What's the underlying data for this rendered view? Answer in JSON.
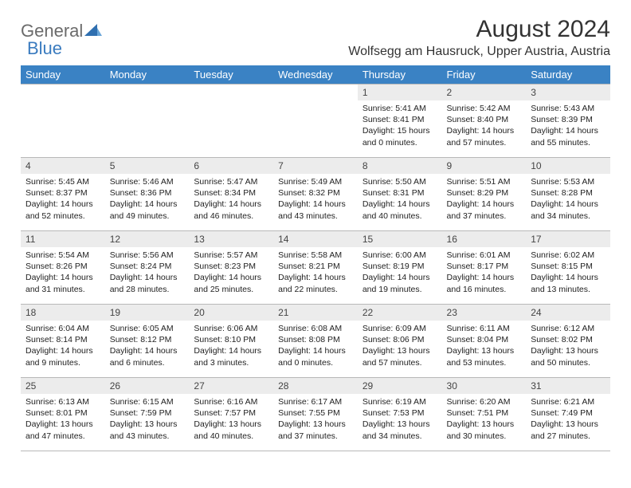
{
  "brand": {
    "part1": "General",
    "part2": "Blue"
  },
  "title": "August 2024",
  "location": "Wolfsegg am Hausruck, Upper Austria, Austria",
  "colors": {
    "header_bg": "#3a82c4",
    "header_fg": "#ffffff",
    "daynum_bg": "#ececec",
    "border": "#b8b8b8",
    "text": "#222222",
    "brand_gray": "#6b6b6b",
    "brand_blue": "#3a7bbf"
  },
  "day_names": [
    "Sunday",
    "Monday",
    "Tuesday",
    "Wednesday",
    "Thursday",
    "Friday",
    "Saturday"
  ],
  "weeks": [
    [
      {
        "n": "",
        "sr": "",
        "ss": "",
        "dl": ""
      },
      {
        "n": "",
        "sr": "",
        "ss": "",
        "dl": ""
      },
      {
        "n": "",
        "sr": "",
        "ss": "",
        "dl": ""
      },
      {
        "n": "",
        "sr": "",
        "ss": "",
        "dl": ""
      },
      {
        "n": "1",
        "sr": "Sunrise: 5:41 AM",
        "ss": "Sunset: 8:41 PM",
        "dl": "Daylight: 15 hours and 0 minutes."
      },
      {
        "n": "2",
        "sr": "Sunrise: 5:42 AM",
        "ss": "Sunset: 8:40 PM",
        "dl": "Daylight: 14 hours and 57 minutes."
      },
      {
        "n": "3",
        "sr": "Sunrise: 5:43 AM",
        "ss": "Sunset: 8:39 PM",
        "dl": "Daylight: 14 hours and 55 minutes."
      }
    ],
    [
      {
        "n": "4",
        "sr": "Sunrise: 5:45 AM",
        "ss": "Sunset: 8:37 PM",
        "dl": "Daylight: 14 hours and 52 minutes."
      },
      {
        "n": "5",
        "sr": "Sunrise: 5:46 AM",
        "ss": "Sunset: 8:36 PM",
        "dl": "Daylight: 14 hours and 49 minutes."
      },
      {
        "n": "6",
        "sr": "Sunrise: 5:47 AM",
        "ss": "Sunset: 8:34 PM",
        "dl": "Daylight: 14 hours and 46 minutes."
      },
      {
        "n": "7",
        "sr": "Sunrise: 5:49 AM",
        "ss": "Sunset: 8:32 PM",
        "dl": "Daylight: 14 hours and 43 minutes."
      },
      {
        "n": "8",
        "sr": "Sunrise: 5:50 AM",
        "ss": "Sunset: 8:31 PM",
        "dl": "Daylight: 14 hours and 40 minutes."
      },
      {
        "n": "9",
        "sr": "Sunrise: 5:51 AM",
        "ss": "Sunset: 8:29 PM",
        "dl": "Daylight: 14 hours and 37 minutes."
      },
      {
        "n": "10",
        "sr": "Sunrise: 5:53 AM",
        "ss": "Sunset: 8:28 PM",
        "dl": "Daylight: 14 hours and 34 minutes."
      }
    ],
    [
      {
        "n": "11",
        "sr": "Sunrise: 5:54 AM",
        "ss": "Sunset: 8:26 PM",
        "dl": "Daylight: 14 hours and 31 minutes."
      },
      {
        "n": "12",
        "sr": "Sunrise: 5:56 AM",
        "ss": "Sunset: 8:24 PM",
        "dl": "Daylight: 14 hours and 28 minutes."
      },
      {
        "n": "13",
        "sr": "Sunrise: 5:57 AM",
        "ss": "Sunset: 8:23 PM",
        "dl": "Daylight: 14 hours and 25 minutes."
      },
      {
        "n": "14",
        "sr": "Sunrise: 5:58 AM",
        "ss": "Sunset: 8:21 PM",
        "dl": "Daylight: 14 hours and 22 minutes."
      },
      {
        "n": "15",
        "sr": "Sunrise: 6:00 AM",
        "ss": "Sunset: 8:19 PM",
        "dl": "Daylight: 14 hours and 19 minutes."
      },
      {
        "n": "16",
        "sr": "Sunrise: 6:01 AM",
        "ss": "Sunset: 8:17 PM",
        "dl": "Daylight: 14 hours and 16 minutes."
      },
      {
        "n": "17",
        "sr": "Sunrise: 6:02 AM",
        "ss": "Sunset: 8:15 PM",
        "dl": "Daylight: 14 hours and 13 minutes."
      }
    ],
    [
      {
        "n": "18",
        "sr": "Sunrise: 6:04 AM",
        "ss": "Sunset: 8:14 PM",
        "dl": "Daylight: 14 hours and 9 minutes."
      },
      {
        "n": "19",
        "sr": "Sunrise: 6:05 AM",
        "ss": "Sunset: 8:12 PM",
        "dl": "Daylight: 14 hours and 6 minutes."
      },
      {
        "n": "20",
        "sr": "Sunrise: 6:06 AM",
        "ss": "Sunset: 8:10 PM",
        "dl": "Daylight: 14 hours and 3 minutes."
      },
      {
        "n": "21",
        "sr": "Sunrise: 6:08 AM",
        "ss": "Sunset: 8:08 PM",
        "dl": "Daylight: 14 hours and 0 minutes."
      },
      {
        "n": "22",
        "sr": "Sunrise: 6:09 AM",
        "ss": "Sunset: 8:06 PM",
        "dl": "Daylight: 13 hours and 57 minutes."
      },
      {
        "n": "23",
        "sr": "Sunrise: 6:11 AM",
        "ss": "Sunset: 8:04 PM",
        "dl": "Daylight: 13 hours and 53 minutes."
      },
      {
        "n": "24",
        "sr": "Sunrise: 6:12 AM",
        "ss": "Sunset: 8:02 PM",
        "dl": "Daylight: 13 hours and 50 minutes."
      }
    ],
    [
      {
        "n": "25",
        "sr": "Sunrise: 6:13 AM",
        "ss": "Sunset: 8:01 PM",
        "dl": "Daylight: 13 hours and 47 minutes."
      },
      {
        "n": "26",
        "sr": "Sunrise: 6:15 AM",
        "ss": "Sunset: 7:59 PM",
        "dl": "Daylight: 13 hours and 43 minutes."
      },
      {
        "n": "27",
        "sr": "Sunrise: 6:16 AM",
        "ss": "Sunset: 7:57 PM",
        "dl": "Daylight: 13 hours and 40 minutes."
      },
      {
        "n": "28",
        "sr": "Sunrise: 6:17 AM",
        "ss": "Sunset: 7:55 PM",
        "dl": "Daylight: 13 hours and 37 minutes."
      },
      {
        "n": "29",
        "sr": "Sunrise: 6:19 AM",
        "ss": "Sunset: 7:53 PM",
        "dl": "Daylight: 13 hours and 34 minutes."
      },
      {
        "n": "30",
        "sr": "Sunrise: 6:20 AM",
        "ss": "Sunset: 7:51 PM",
        "dl": "Daylight: 13 hours and 30 minutes."
      },
      {
        "n": "31",
        "sr": "Sunrise: 6:21 AM",
        "ss": "Sunset: 7:49 PM",
        "dl": "Daylight: 13 hours and 27 minutes."
      }
    ]
  ]
}
